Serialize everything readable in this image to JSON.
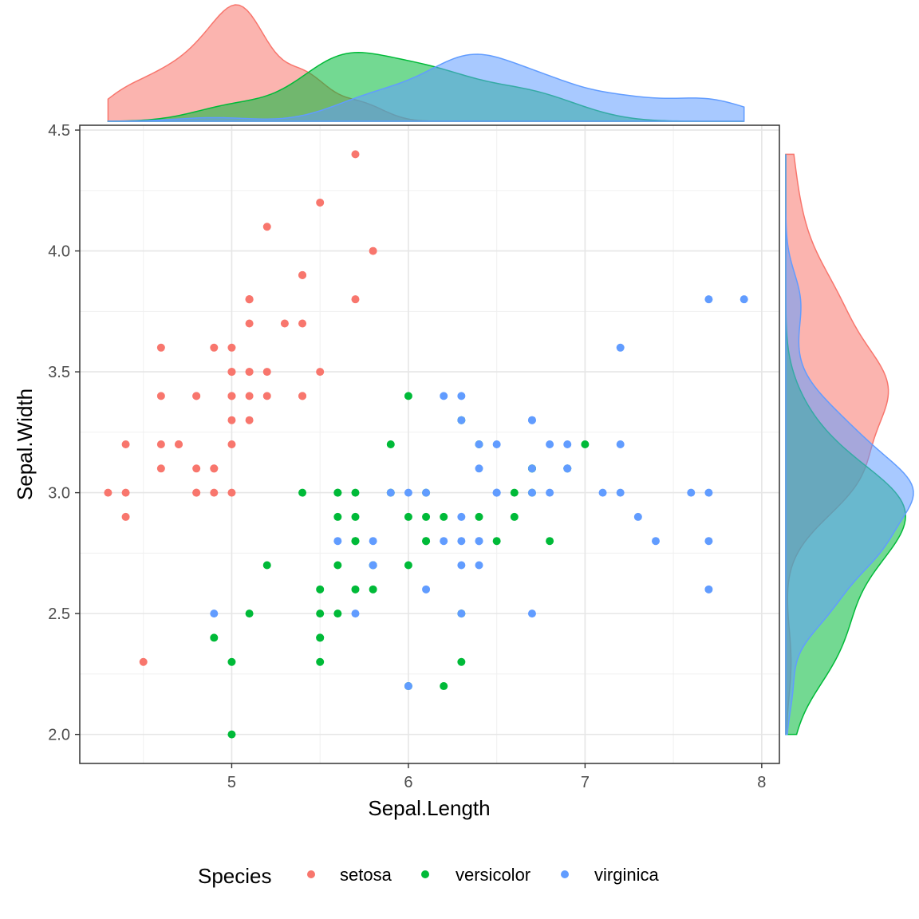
{
  "chart_data": {
    "type": "scatter",
    "marginal": "density",
    "xlabel": "Sepal.Length",
    "ylabel": "Sepal.Width",
    "xlim": [
      4.14,
      8.1
    ],
    "ylim": [
      1.88,
      4.52
    ],
    "x_ticks": [
      5,
      6,
      7,
      8
    ],
    "x_tick_labels": [
      "5",
      "6",
      "7",
      "8"
    ],
    "y_ticks": [
      2.0,
      2.5,
      3.0,
      3.5,
      4.0,
      4.5
    ],
    "y_tick_labels": [
      "2.0",
      "2.5",
      "3.0",
      "3.5",
      "4.0",
      "4.5"
    ],
    "grid": true,
    "legend": {
      "title": "Species",
      "position": "bottom"
    },
    "series": [
      {
        "name": "setosa",
        "color": "#F8766D",
        "points": [
          [
            5.1,
            3.5
          ],
          [
            4.9,
            3.0
          ],
          [
            4.7,
            3.2
          ],
          [
            4.6,
            3.1
          ],
          [
            5.0,
            3.6
          ],
          [
            5.4,
            3.9
          ],
          [
            4.6,
            3.4
          ],
          [
            5.0,
            3.4
          ],
          [
            4.4,
            2.9
          ],
          [
            4.9,
            3.1
          ],
          [
            5.4,
            3.7
          ],
          [
            4.8,
            3.4
          ],
          [
            4.8,
            3.0
          ],
          [
            4.3,
            3.0
          ],
          [
            5.8,
            4.0
          ],
          [
            5.7,
            4.4
          ],
          [
            5.4,
            3.9
          ],
          [
            5.1,
            3.5
          ],
          [
            5.7,
            3.8
          ],
          [
            5.1,
            3.8
          ],
          [
            5.4,
            3.4
          ],
          [
            5.1,
            3.7
          ],
          [
            4.6,
            3.6
          ],
          [
            5.1,
            3.3
          ],
          [
            4.8,
            3.4
          ],
          [
            5.0,
            3.0
          ],
          [
            5.0,
            3.4
          ],
          [
            5.2,
            3.5
          ],
          [
            5.2,
            3.4
          ],
          [
            4.7,
            3.2
          ],
          [
            4.8,
            3.1
          ],
          [
            5.4,
            3.4
          ],
          [
            5.2,
            4.1
          ],
          [
            5.5,
            4.2
          ],
          [
            4.9,
            3.1
          ],
          [
            5.0,
            3.2
          ],
          [
            5.5,
            3.5
          ],
          [
            4.9,
            3.6
          ],
          [
            4.4,
            3.0
          ],
          [
            5.1,
            3.4
          ],
          [
            5.0,
            3.5
          ],
          [
            4.5,
            2.3
          ],
          [
            4.4,
            3.2
          ],
          [
            5.0,
            3.5
          ],
          [
            5.1,
            3.8
          ],
          [
            4.8,
            3.0
          ],
          [
            5.1,
            3.8
          ],
          [
            4.6,
            3.2
          ],
          [
            5.3,
            3.7
          ],
          [
            5.0,
            3.3
          ]
        ]
      },
      {
        "name": "versicolor",
        "color": "#00BA38",
        "points": [
          [
            7.0,
            3.2
          ],
          [
            6.4,
            3.2
          ],
          [
            6.9,
            3.1
          ],
          [
            5.5,
            2.3
          ],
          [
            6.5,
            2.8
          ],
          [
            5.7,
            2.8
          ],
          [
            6.3,
            3.3
          ],
          [
            4.9,
            2.4
          ],
          [
            6.6,
            2.9
          ],
          [
            5.2,
            2.7
          ],
          [
            5.0,
            2.0
          ],
          [
            5.9,
            3.0
          ],
          [
            6.0,
            2.2
          ],
          [
            6.1,
            2.9
          ],
          [
            5.6,
            2.9
          ],
          [
            6.7,
            3.1
          ],
          [
            5.6,
            3.0
          ],
          [
            5.8,
            2.7
          ],
          [
            6.2,
            2.2
          ],
          [
            5.6,
            2.5
          ],
          [
            5.9,
            3.2
          ],
          [
            6.1,
            2.8
          ],
          [
            6.3,
            2.5
          ],
          [
            6.1,
            2.8
          ],
          [
            6.4,
            2.9
          ],
          [
            6.6,
            3.0
          ],
          [
            6.8,
            2.8
          ],
          [
            6.7,
            3.0
          ],
          [
            6.0,
            2.9
          ],
          [
            5.7,
            2.6
          ],
          [
            5.5,
            2.4
          ],
          [
            5.5,
            2.4
          ],
          [
            5.8,
            2.7
          ],
          [
            6.0,
            2.7
          ],
          [
            5.4,
            3.0
          ],
          [
            6.0,
            3.4
          ],
          [
            6.7,
            3.1
          ],
          [
            6.3,
            2.3
          ],
          [
            5.6,
            3.0
          ],
          [
            5.5,
            2.5
          ],
          [
            5.5,
            2.6
          ],
          [
            6.1,
            3.0
          ],
          [
            5.8,
            2.6
          ],
          [
            5.0,
            2.3
          ],
          [
            5.6,
            2.7
          ],
          [
            5.7,
            3.0
          ],
          [
            5.7,
            2.9
          ],
          [
            6.2,
            2.9
          ],
          [
            5.1,
            2.5
          ],
          [
            5.7,
            2.8
          ]
        ]
      },
      {
        "name": "virginica",
        "color": "#619CFF",
        "points": [
          [
            6.3,
            3.3
          ],
          [
            5.8,
            2.7
          ],
          [
            7.1,
            3.0
          ],
          [
            6.3,
            2.9
          ],
          [
            6.5,
            3.0
          ],
          [
            7.6,
            3.0
          ],
          [
            4.9,
            2.5
          ],
          [
            7.3,
            2.9
          ],
          [
            6.7,
            2.5
          ],
          [
            7.2,
            3.6
          ],
          [
            6.5,
            3.2
          ],
          [
            6.4,
            2.7
          ],
          [
            6.8,
            3.0
          ],
          [
            5.7,
            2.5
          ],
          [
            5.8,
            2.8
          ],
          [
            6.4,
            3.2
          ],
          [
            6.5,
            3.0
          ],
          [
            7.7,
            3.8
          ],
          [
            7.7,
            2.6
          ],
          [
            6.0,
            2.2
          ],
          [
            6.9,
            3.2
          ],
          [
            5.6,
            2.8
          ],
          [
            7.7,
            2.8
          ],
          [
            6.3,
            2.7
          ],
          [
            6.7,
            3.3
          ],
          [
            7.2,
            3.2
          ],
          [
            6.2,
            2.8
          ],
          [
            6.1,
            3.0
          ],
          [
            6.4,
            2.8
          ],
          [
            7.2,
            3.0
          ],
          [
            7.4,
            2.8
          ],
          [
            7.9,
            3.8
          ],
          [
            6.4,
            2.8
          ],
          [
            6.3,
            2.8
          ],
          [
            6.1,
            2.6
          ],
          [
            7.7,
            3.0
          ],
          [
            6.3,
            3.4
          ],
          [
            6.4,
            3.1
          ],
          [
            6.0,
            3.0
          ],
          [
            6.9,
            3.1
          ],
          [
            6.7,
            3.1
          ],
          [
            6.9,
            3.1
          ],
          [
            5.8,
            2.7
          ],
          [
            6.8,
            3.2
          ],
          [
            6.7,
            3.3
          ],
          [
            6.7,
            3.0
          ],
          [
            6.3,
            2.5
          ],
          [
            6.5,
            3.0
          ],
          [
            6.2,
            3.4
          ],
          [
            5.9,
            3.0
          ]
        ]
      }
    ]
  }
}
